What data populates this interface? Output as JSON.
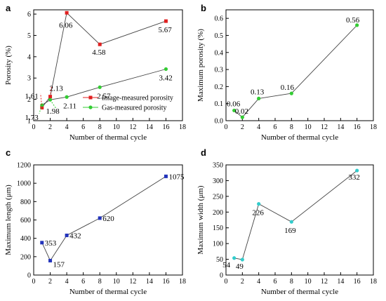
{
  "chart_data": [
    {
      "panel": "a",
      "type": "line",
      "xlabel": "Number of thermal cycle",
      "ylabel": "Porosity (%)",
      "xlim": [
        0,
        18
      ],
      "ylim": [
        1,
        6.2
      ],
      "x_ticks": [
        "0",
        "2",
        "4",
        "6",
        "8",
        "10",
        "12",
        "14",
        "16",
        "18"
      ],
      "y_ticks": [
        "1",
        "2",
        "3",
        "4",
        "5",
        "6"
      ],
      "legend_position": "bottom-right",
      "series": [
        {
          "name": "Image-measured porosity",
          "color": "#e02020",
          "marker": "square",
          "x": [
            1,
            2,
            4,
            8,
            16
          ],
          "y": [
            1.61,
            2.13,
            6.06,
            4.58,
            5.67
          ],
          "labels": [
            "1.61",
            "2.13",
            "6.06",
            "4.58",
            "5.67"
          ]
        },
        {
          "name": "Gas-measured porosity",
          "color": "#33cc33",
          "marker": "circle",
          "x": [
            1,
            2,
            4,
            8,
            16
          ],
          "y": [
            1.73,
            1.98,
            2.11,
            2.57,
            3.42
          ],
          "labels": [
            "1.73",
            "1.98",
            "2.11",
            "2.57",
            "3.42"
          ]
        }
      ]
    },
    {
      "panel": "b",
      "type": "line",
      "xlabel": "Number of thermal cycle",
      "ylabel": "Maximum porosity (%)",
      "xlim": [
        0,
        18
      ],
      "ylim": [
        0,
        0.65
      ],
      "x_ticks": [
        "0",
        "2",
        "4",
        "6",
        "8",
        "10",
        "12",
        "14",
        "16",
        "18"
      ],
      "y_ticks": [
        "0.0",
        "0.1",
        "0.2",
        "0.3",
        "0.4",
        "0.5",
        "0.6"
      ],
      "series": [
        {
          "color": "#33cc33",
          "marker": "circle",
          "x": [
            1,
            2,
            4,
            8,
            16
          ],
          "y": [
            0.06,
            0.02,
            0.13,
            0.16,
            0.56
          ],
          "labels": [
            "0.06",
            "0.02",
            "0.13",
            "0.16",
            "0.56"
          ]
        }
      ]
    },
    {
      "panel": "c",
      "type": "line",
      "xlabel": "Number of thermal cycle",
      "ylabel": "Maximum length (μm)",
      "xlim": [
        0,
        18
      ],
      "ylim": [
        0,
        1200
      ],
      "x_ticks": [
        "0",
        "2",
        "4",
        "6",
        "8",
        "10",
        "12",
        "14",
        "16",
        "18"
      ],
      "y_ticks": [
        "0",
        "200",
        "400",
        "600",
        "800",
        "1000",
        "1200"
      ],
      "series": [
        {
          "color": "#2233bb",
          "marker": "square",
          "x": [
            1,
            2,
            4,
            8,
            16
          ],
          "y": [
            353,
            157,
            432,
            620,
            1075
          ],
          "labels": [
            "353",
            "157",
            "432",
            "620",
            "1075"
          ]
        }
      ]
    },
    {
      "panel": "d",
      "type": "line",
      "xlabel": "Number of thermal cycle",
      "ylabel": "Maximum width (μm)",
      "xlim": [
        0,
        18
      ],
      "ylim": [
        0,
        350
      ],
      "x_ticks": [
        "0",
        "2",
        "4",
        "6",
        "8",
        "10",
        "12",
        "14",
        "16",
        "18"
      ],
      "y_ticks": [
        "0",
        "50",
        "100",
        "150",
        "200",
        "250",
        "300",
        "350"
      ],
      "series": [
        {
          "color": "#33cccc",
          "marker": "circle",
          "x": [
            1,
            2,
            4,
            8,
            16
          ],
          "y": [
            54,
            49,
            226,
            169,
            332
          ],
          "labels": [
            "54",
            "49",
            "226",
            "169",
            "332"
          ]
        }
      ]
    }
  ]
}
